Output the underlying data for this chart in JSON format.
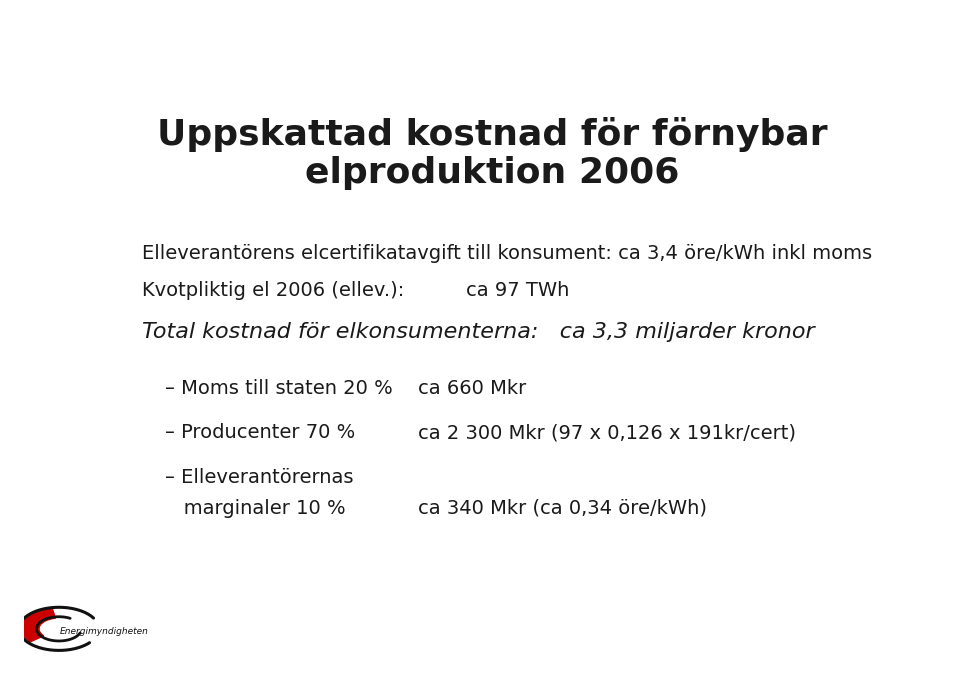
{
  "title": "Uppskattad kostnad för förnybar\nelproduktion 2006",
  "line1": "Elleverantörens elcertifikatavgift till konsument: ca 3,4 öre/kWh inkl moms",
  "line2_left": "Kvotpliktig el 2006 (ellev.):",
  "line2_right": "ca 97 TWh",
  "line3": "Total kostnad för elkonsumenterna:   ca 3,3 miljarder kronor",
  "bullet1_left": "– Moms till staten 20 %",
  "bullet1_right": "ca 660 Mkr",
  "bullet2_left": "– Producenter 70 %",
  "bullet2_right": "ca 2 300 Mkr (97 x 0,126 x 191kr/cert)",
  "bullet3a_left": "– Elleverantörernas",
  "bullet3b_left": "   marginaler 10 %",
  "bullet3_right": "ca 340 Mkr (ca 0,34 öre/kWh)",
  "logo_text": "Energimyndigheten",
  "bg_color": "#ffffff",
  "text_color": "#1a1a1a",
  "title_fontsize": 26,
  "body_fontsize": 14,
  "total_fontsize": 16,
  "bullet_fontsize": 14
}
